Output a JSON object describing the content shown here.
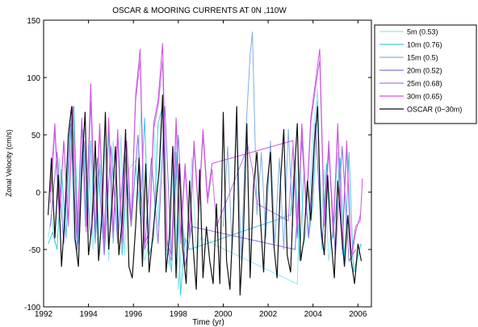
{
  "chart_data": {
    "type": "line",
    "title": "OSCAR & MOORING CURRENTS AT 0N ,110W",
    "xlabel": "Time (yr)",
    "ylabel": "Zonal Velocity (cm/s)",
    "xlim": [
      1992,
      2006.6
    ],
    "ylim": [
      -100,
      150
    ],
    "xticks": [
      1992,
      1994,
      1996,
      1998,
      2000,
      2002,
      2004,
      2006
    ],
    "yticks": [
      -100,
      -50,
      0,
      50,
      100,
      150
    ],
    "grid": false,
    "legend_position": "outside-right",
    "series": [
      {
        "name": "5m (0.53)",
        "color": "#8ee8f0",
        "x": [
          1992.2,
          1992.35,
          1992.5,
          1992.7,
          1992.9,
          1993.1,
          1993.2,
          1993.35,
          1993.5,
          1993.7,
          1993.85,
          1994.0,
          1994.2,
          1994.35,
          1994.5,
          1994.7,
          1994.9,
          1995.1,
          1995.3,
          1995.45,
          1995.6,
          1995.8,
          1996.2,
          1996.35,
          1996.5,
          1996.7,
          1996.9,
          1997.1,
          1997.3,
          1997.45,
          1997.6,
          1997.8,
          1998.0,
          1998.2,
          1998.4,
          1998.6,
          1998.8,
          1999.0,
          2003.3,
          2003.45,
          2003.6,
          2003.8,
          2004.0,
          2004.2,
          2004.35,
          2004.5,
          2004.7,
          2004.9,
          2005.1,
          2005.3,
          2005.5,
          2005.7,
          2005.9,
          2006.1
        ],
        "values": [
          -40,
          -20,
          -45,
          30,
          -30,
          40,
          70,
          -40,
          -55,
          60,
          -30,
          40,
          -50,
          20,
          -55,
          50,
          -60,
          45,
          -40,
          50,
          -55,
          20,
          30,
          70,
          -60,
          -45,
          60,
          -30,
          80,
          -50,
          -65,
          40,
          -85,
          -30,
          -55,
          30,
          -50,
          -40,
          -80,
          20,
          -45,
          -20,
          50,
          90,
          -40,
          20,
          -60,
          -30,
          35,
          -55,
          40,
          -65,
          -70,
          -45
        ]
      },
      {
        "name": "10m (0.76)",
        "color": "#40c8e0",
        "x": [
          1992.2,
          1992.4,
          1992.6,
          1992.8,
          1993.0,
          1993.2,
          1993.35,
          1993.55,
          1993.75,
          1993.95,
          1994.1,
          1994.3,
          1994.5,
          1994.7,
          1994.9,
          1995.1,
          1995.3,
          1995.5,
          1995.7,
          1995.9,
          1996.1,
          1996.3,
          1996.5,
          1996.7,
          1996.9,
          1997.1,
          1997.3,
          1997.5,
          1997.7,
          1997.9,
          1998.1,
          1998.3,
          1998.5,
          2003.0,
          2003.2,
          2003.4,
          2003.6,
          2003.8,
          2004.0,
          2004.2,
          2004.4,
          2004.6,
          2004.8,
          2005.0,
          2005.2,
          2005.4,
          2005.6,
          2005.8,
          2006.0,
          2006.15
        ],
        "values": [
          -45,
          -35,
          -50,
          20,
          -40,
          55,
          75,
          -45,
          55,
          -30,
          45,
          -45,
          25,
          -50,
          55,
          -45,
          50,
          -55,
          10,
          -30,
          25,
          -20,
          65,
          -55,
          -40,
          60,
          75,
          -40,
          -70,
          35,
          -90,
          -40,
          -50,
          -20,
          30,
          -60,
          20,
          -40,
          -10,
          80,
          -50,
          25,
          -45,
          -20,
          30,
          -60,
          35,
          -70,
          -55,
          -45
        ]
      },
      {
        "name": "15m (0.5)",
        "color": "#7fb0e6",
        "x": [
          2000.0,
          2000.2,
          2000.4,
          2000.6,
          2000.8,
          2001.0,
          2001.2,
          2001.3,
          2001.5,
          2001.7,
          2001.9,
          2002.1,
          2002.3,
          2002.5,
          2002.7,
          2002.9,
          2003.1
        ],
        "values": [
          -30,
          40,
          -50,
          65,
          -60,
          50,
          120,
          140,
          -20,
          35,
          -40,
          45,
          -45,
          30,
          -50,
          55,
          -30
        ]
      },
      {
        "name": "20m (0.52)",
        "color": "#8a70e0",
        "x": [
          1992.3,
          1992.6,
          1992.9,
          1993.2,
          1993.5,
          1993.8,
          1994.1,
          1994.4,
          1994.7,
          1995.0,
          1995.3,
          1995.6,
          1995.9,
          1996.2,
          1996.5,
          1996.8,
          1997.1,
          1997.4,
          1997.7,
          1998.0,
          1998.3,
          1998.6,
          2003.2,
          2003.5,
          2003.8,
          2004.1,
          2004.4,
          2004.7,
          2005.0,
          2005.3,
          2005.6,
          2005.9
        ],
        "values": [
          -30,
          35,
          -45,
          60,
          -50,
          45,
          -40,
          30,
          -55,
          40,
          -45,
          35,
          -30,
          50,
          -50,
          30,
          -45,
          75,
          -60,
          50,
          -65,
          -30,
          -50,
          45,
          -40,
          60,
          -45,
          35,
          -55,
          40,
          -60,
          -50
        ]
      },
      {
        "name": "25m (0.68)",
        "color": "#c070e8",
        "x": [
          1992.3,
          1992.5,
          1992.7,
          1992.9,
          1993.1,
          1993.3,
          1993.5,
          1993.7,
          1993.9,
          1994.1,
          1994.3,
          1994.5,
          1994.7,
          1994.9,
          1995.1,
          1995.3,
          1995.5,
          1995.7,
          1995.9,
          1996.1,
          1996.3,
          1996.5,
          1996.7,
          1996.9,
          1997.1,
          1997.3,
          1997.5,
          1997.7,
          1997.9,
          1998.1,
          1998.3,
          1998.5,
          1998.7,
          1998.9,
          1999.1,
          1999.3,
          1999.5,
          1999.7,
          2001.1,
          2001.3,
          2001.5,
          2002.9,
          2003.1,
          2003.3,
          2003.5,
          2003.7,
          2003.9,
          2004.1,
          2004.3,
          2004.5,
          2004.7,
          2004.9,
          2005.1,
          2005.3,
          2005.5,
          2005.7,
          2005.9,
          2006.1
        ],
        "values": [
          -10,
          55,
          -25,
          45,
          -30,
          70,
          -40,
          60,
          -35,
          80,
          -40,
          55,
          -45,
          60,
          -40,
          50,
          -45,
          40,
          -30,
          80,
          115,
          -50,
          -40,
          55,
          75,
          115,
          -50,
          -60,
          60,
          -45,
          20,
          -40,
          40,
          -20,
          50,
          -10,
          20,
          -30,
          40,
          20,
          -10,
          -25,
          40,
          -40,
          55,
          -20,
          60,
          90,
          115,
          -30,
          40,
          -40,
          55,
          -50,
          40,
          -60,
          -35,
          -20
        ]
      },
      {
        "name": "30m (0.65)",
        "color": "#d050e0",
        "x": [
          1992.3,
          1992.5,
          1992.7,
          1992.9,
          1993.1,
          1993.3,
          1993.5,
          1993.7,
          1993.9,
          1994.1,
          1994.3,
          1994.5,
          1994.7,
          1994.9,
          1995.1,
          1995.3,
          1995.5,
          1995.7,
          1995.9,
          1996.1,
          1996.3,
          1996.5,
          1996.7,
          1996.9,
          1997.1,
          1997.3,
          1997.5,
          1997.7,
          1997.9,
          1998.1,
          1998.3,
          1998.5,
          1998.7,
          1998.9,
          1999.1,
          1999.3,
          1999.5,
          2003.1,
          2003.3,
          2003.5,
          2003.7,
          2003.9,
          2004.1,
          2004.3,
          2004.5,
          2004.7,
          2004.9,
          2005.1,
          2005.3,
          2005.5,
          2005.7,
          2005.9,
          2006.1,
          2006.2
        ],
        "values": [
          0,
          60,
          -20,
          45,
          -25,
          75,
          -35,
          65,
          -30,
          95,
          -35,
          60,
          -40,
          65,
          -35,
          55,
          -40,
          45,
          -25,
          85,
          125,
          -45,
          -35,
          60,
          80,
          130,
          -45,
          -55,
          65,
          -40,
          25,
          -35,
          45,
          -15,
          55,
          -5,
          25,
          45,
          -35,
          60,
          -15,
          65,
          95,
          125,
          -25,
          45,
          -35,
          60,
          -45,
          45,
          -55,
          -30,
          -25,
          12
        ]
      },
      {
        "name": "OSCAR (0~30m)",
        "color": "#111111",
        "x": [
          1992.2,
          1992.35,
          1992.5,
          1992.65,
          1992.8,
          1992.95,
          1993.1,
          1993.25,
          1993.4,
          1993.55,
          1993.7,
          1993.85,
          1994.0,
          1994.15,
          1994.3,
          1994.45,
          1994.6,
          1994.75,
          1994.9,
          1995.05,
          1995.2,
          1995.35,
          1995.5,
          1995.65,
          1995.8,
          1995.95,
          1996.1,
          1996.25,
          1996.4,
          1996.55,
          1996.7,
          1996.85,
          1997.0,
          1997.15,
          1997.3,
          1997.45,
          1997.6,
          1997.75,
          1997.9,
          1998.05,
          1998.2,
          1998.35,
          1998.5,
          1998.65,
          1998.8,
          1998.95,
          1999.1,
          1999.25,
          1999.4,
          1999.55,
          1999.7,
          1999.85,
          2000.0,
          2000.15,
          2000.3,
          2000.45,
          2000.6,
          2000.75,
          2000.9,
          2001.05,
          2001.2,
          2001.35,
          2001.5,
          2001.65,
          2001.8,
          2001.95,
          2002.1,
          2002.25,
          2002.4,
          2002.55,
          2002.7,
          2002.85,
          2003.0,
          2003.15,
          2003.3,
          2003.45,
          2003.6,
          2003.75,
          2003.9,
          2004.05,
          2004.2,
          2004.35,
          2004.5,
          2004.65,
          2004.8,
          2004.95,
          2005.1,
          2005.25,
          2005.4,
          2005.55,
          2005.7,
          2005.85,
          2006.0,
          2006.15
        ],
        "values": [
          -20,
          30,
          -40,
          15,
          -65,
          -20,
          50,
          75,
          -40,
          -65,
          20,
          70,
          -55,
          -30,
          45,
          -60,
          -20,
          70,
          -50,
          -10,
          40,
          -55,
          -25,
          55,
          -65,
          -75,
          -30,
          30,
          -65,
          25,
          -70,
          -40,
          -10,
          20,
          85,
          -70,
          -40,
          40,
          -75,
          25,
          -50,
          -80,
          10,
          -45,
          -85,
          20,
          -75,
          -30,
          -60,
          -80,
          -10,
          -80,
          70,
          -60,
          -85,
          -20,
          75,
          -90,
          -35,
          60,
          -75,
          5,
          35,
          -20,
          -70,
          5,
          35,
          -45,
          -75,
          10,
          55,
          -55,
          -70,
          10,
          60,
          -60,
          -40,
          10,
          -25,
          40,
          75,
          -30,
          -55,
          15,
          -40,
          -75,
          10,
          -30,
          -65,
          -20,
          -60,
          -80,
          -45,
          -60
        ]
      }
    ]
  }
}
